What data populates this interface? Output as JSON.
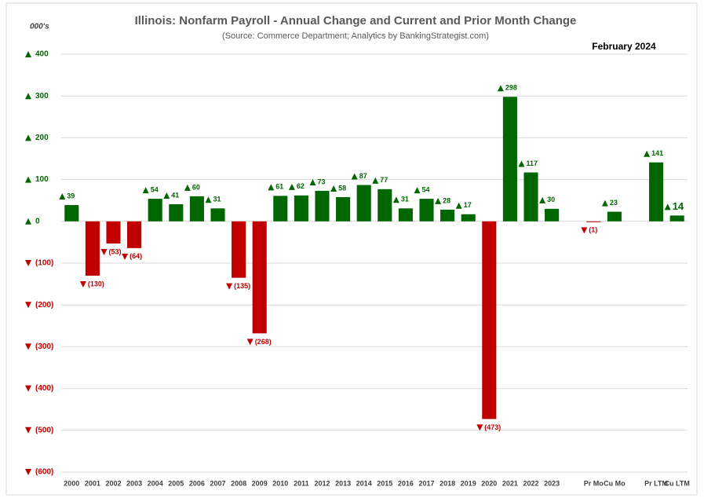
{
  "chart_data": {
    "type": "bar",
    "title": "Illinois:  Nonfarm Payroll - Annual Change and Current and Prior Month Change",
    "subtitle": "(Source: Commerce Department; Analytics by BankingStrategist.com)",
    "unit_label": "000's",
    "date_label": "February  2024",
    "categories": [
      "2000",
      "2001",
      "2002",
      "2003",
      "2004",
      "2005",
      "2006",
      "2007",
      "2008",
      "2009",
      "2010",
      "2011",
      "2012",
      "2013",
      "2014",
      "2015",
      "2016",
      "2017",
      "2018",
      "2019",
      "2020",
      "2021",
      "2022",
      "2023",
      null,
      "Pr Mo",
      "Cu Mo",
      null,
      "Pr LTM",
      "Cu LTM"
    ],
    "values": [
      39,
      -130,
      -53,
      -64,
      54,
      41,
      60,
      31,
      -135,
      -268,
      61,
      62,
      73,
      58,
      87,
      77,
      31,
      54,
      28,
      17,
      -473,
      298,
      117,
      30,
      null,
      -1,
      23,
      null,
      141,
      14
    ],
    "value_labels": [
      "39",
      "(130)",
      "(53)",
      "(64)",
      "54",
      "41",
      "60",
      "31",
      "(135)",
      "(268)",
      "61",
      "62",
      "73",
      "58",
      "87",
      "77",
      "31",
      "54",
      "28",
      "17",
      "(473)",
      "298",
      "117",
      "30",
      null,
      "(1)",
      "23",
      null,
      "141",
      "14"
    ],
    "positive_color": "#006600",
    "negative_color": "#c00000",
    "ylim": [
      -600,
      400
    ],
    "yticks": [
      {
        "value": -600,
        "label": "(600)"
      },
      {
        "value": -500,
        "label": "(500)"
      },
      {
        "value": -400,
        "label": "(400)"
      },
      {
        "value": -300,
        "label": "(300)"
      },
      {
        "value": -200,
        "label": "(200)"
      },
      {
        "value": -100,
        "label": "(100)"
      },
      0,
      100,
      200,
      300,
      400
    ],
    "grid": true
  }
}
